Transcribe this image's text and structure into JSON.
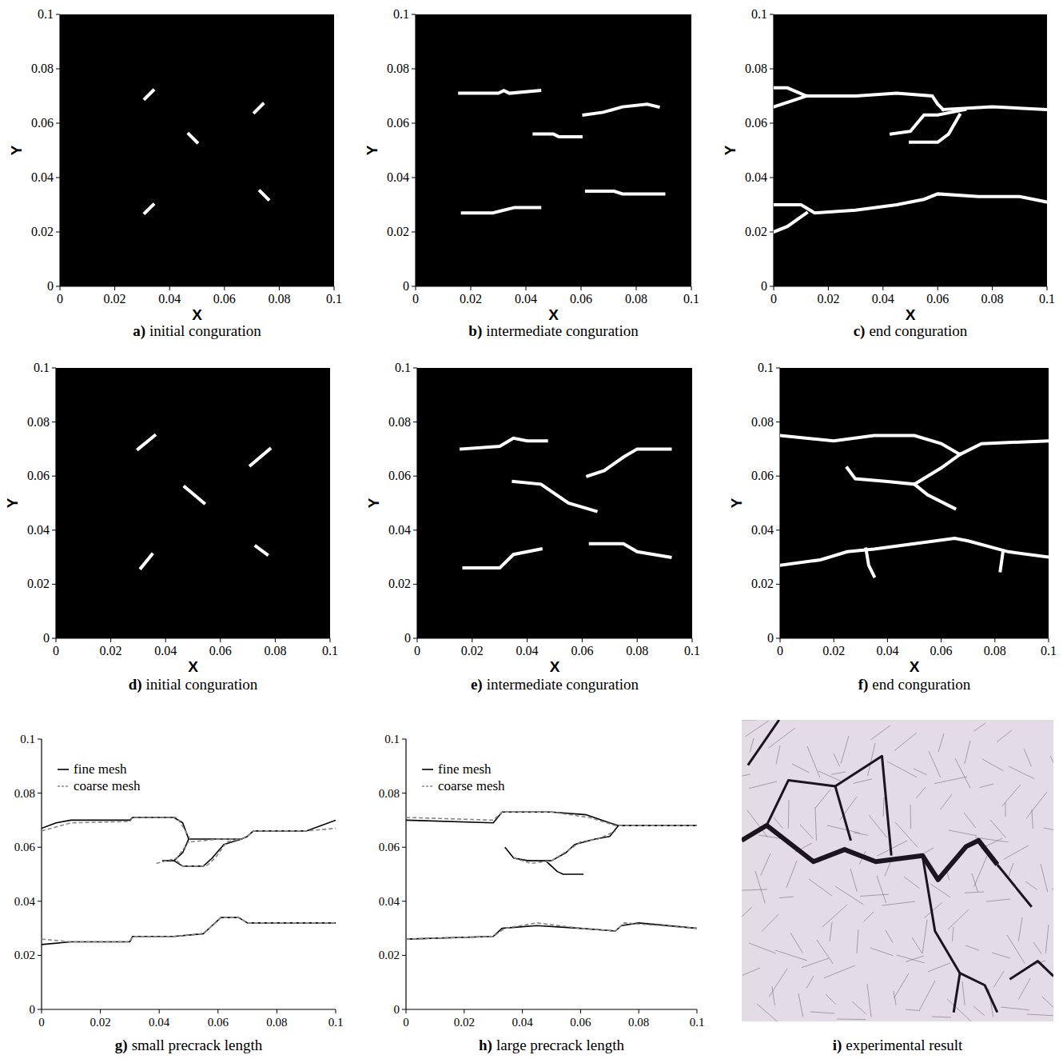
{
  "chart_data": [
    {
      "type": "crack_map",
      "panel_label": "a)",
      "title": "initial conguration",
      "x_label": "X",
      "y_label": "Y",
      "xlim": [
        0,
        0.1
      ],
      "ylim": [
        0,
        0.1
      ],
      "xticks": [
        0,
        0.02,
        0.04,
        0.06,
        0.08,
        0.1
      ],
      "yticks": [
        0,
        0.02,
        0.04,
        0.06,
        0.08,
        0.1
      ],
      "series": [
        {
          "color": "#ffffff",
          "x": [
            0.031,
            0.034,
            null,
            0.071,
            0.074,
            null,
            0.047,
            0.05,
            null,
            0.031,
            0.034,
            null,
            0.073,
            0.076
          ],
          "values": [
            0.069,
            0.072,
            null,
            0.064,
            0.067,
            null,
            0.056,
            0.053,
            null,
            0.027,
            0.03,
            null,
            0.035,
            0.032
          ]
        }
      ]
    },
    {
      "type": "crack_map",
      "panel_label": "b)",
      "title": "intermediate conguration",
      "x_label": "X",
      "y_label": "Y",
      "xlim": [
        0,
        0.1
      ],
      "ylim": [
        0,
        0.1
      ],
      "xticks": [
        0,
        0.02,
        0.04,
        0.06,
        0.08,
        0.1
      ],
      "yticks": [
        0,
        0.02,
        0.04,
        0.06,
        0.08,
        0.1
      ],
      "series": [
        {
          "color": "#ffffff",
          "x": [
            0.016,
            0.03,
            0.032,
            0.034,
            0.045,
            null,
            0.061,
            0.068,
            0.075,
            0.084,
            0.088,
            null,
            0.043,
            0.05,
            0.052,
            0.06,
            null,
            0.017,
            0.028,
            0.032,
            0.036,
            0.045,
            null,
            0.062,
            0.072,
            0.075,
            0.082,
            0.09
          ],
          "values": [
            0.071,
            0.071,
            0.072,
            0.071,
            0.072,
            null,
            0.063,
            0.064,
            0.066,
            0.067,
            0.066,
            null,
            0.056,
            0.056,
            0.055,
            0.055,
            null,
            0.027,
            0.027,
            0.028,
            0.029,
            0.029,
            null,
            0.035,
            0.035,
            0.034,
            0.034,
            0.034
          ]
        }
      ]
    },
    {
      "type": "crack_map",
      "panel_label": "c)",
      "title": "end conguration",
      "x_label": "X",
      "y_label": "Y",
      "xlim": [
        0,
        0.1
      ],
      "ylim": [
        0,
        0.1
      ],
      "xticks": [
        0,
        0.02,
        0.04,
        0.06,
        0.08,
        0.1
      ],
      "yticks": [
        0,
        0.02,
        0.04,
        0.06,
        0.08,
        0.1
      ],
      "series": [
        {
          "color": "#ffffff",
          "x": [
            0,
            0.005,
            0.012,
            0.03,
            0.045,
            0.058,
            0.06,
            0.062,
            null,
            0,
            0.006,
            0.012,
            null,
            0.062,
            0.08,
            0.1,
            null,
            0.043,
            0.05,
            0.055,
            0.06,
            0.065,
            0.07,
            null,
            0.05,
            0.06,
            0.064,
            0.068,
            null,
            0,
            0.01,
            0.015,
            0.03,
            0.045,
            0.055,
            0.06,
            0.075,
            0.09,
            0.1,
            null,
            0,
            0.005,
            0.012
          ],
          "values": [
            0.073,
            0.073,
            0.07,
            0.07,
            0.071,
            0.07,
            0.067,
            0.065,
            null,
            0.066,
            0.068,
            0.07,
            null,
            0.065,
            0.066,
            0.065,
            null,
            0.056,
            0.057,
            0.063,
            0.063,
            0.064,
            0.065,
            null,
            0.053,
            0.053,
            0.056,
            0.063,
            null,
            0.03,
            0.03,
            0.027,
            0.028,
            0.03,
            0.032,
            0.034,
            0.033,
            0.033,
            0.031,
            null,
            0.02,
            0.022,
            0.027
          ]
        }
      ]
    },
    {
      "type": "crack_map",
      "panel_label": "d)",
      "title": "initial conguration",
      "x_label": "X",
      "y_label": "Y",
      "xlim": [
        0,
        0.1
      ],
      "ylim": [
        0,
        0.1
      ],
      "xticks": [
        0,
        0.02,
        0.04,
        0.06,
        0.08,
        0.1
      ],
      "yticks": [
        0,
        0.02,
        0.04,
        0.06,
        0.08,
        0.1
      ],
      "series": [
        {
          "color": "#ffffff",
          "x": [
            0.03,
            0.036,
            null,
            0.071,
            0.078,
            null,
            0.047,
            0.054,
            null,
            0.031,
            0.035,
            null,
            0.073,
            0.077
          ],
          "values": [
            0.07,
            0.075,
            null,
            0.064,
            0.07,
            null,
            0.056,
            0.05,
            null,
            0.026,
            0.031,
            null,
            0.034,
            0.031
          ]
        }
      ]
    },
    {
      "type": "crack_map",
      "panel_label": "e)",
      "title": "intermediate conguration",
      "x_label": "X",
      "y_label": "Y",
      "xlim": [
        0,
        0.1
      ],
      "ylim": [
        0,
        0.1
      ],
      "xticks": [
        0,
        0.02,
        0.04,
        0.06,
        0.08,
        0.1
      ],
      "yticks": [
        0,
        0.02,
        0.04,
        0.06,
        0.08,
        0.1
      ],
      "series": [
        {
          "color": "#ffffff",
          "x": [
            0.016,
            0.03,
            0.035,
            0.04,
            0.047,
            null,
            0.062,
            0.068,
            0.075,
            0.08,
            0.092,
            null,
            0.035,
            0.045,
            0.055,
            0.065,
            null,
            0.017,
            0.03,
            0.035,
            0.045,
            null,
            0.063,
            0.075,
            0.08,
            0.092
          ],
          "values": [
            0.07,
            0.071,
            0.074,
            0.073,
            0.073,
            null,
            0.06,
            0.062,
            0.067,
            0.07,
            0.07,
            null,
            0.058,
            0.057,
            0.05,
            0.047,
            null,
            0.026,
            0.026,
            0.031,
            0.033,
            null,
            0.035,
            0.035,
            0.032,
            0.03
          ]
        }
      ]
    },
    {
      "type": "crack_map",
      "panel_label": "f)",
      "title": "end conguration",
      "x_label": "X",
      "y_label": "Y",
      "xlim": [
        0,
        0.1
      ],
      "ylim": [
        0,
        0.1
      ],
      "xticks": [
        0,
        0.02,
        0.04,
        0.06,
        0.08,
        0.1
      ],
      "yticks": [
        0,
        0.02,
        0.04,
        0.06,
        0.08,
        0.1
      ],
      "series": [
        {
          "color": "#ffffff",
          "x": [
            0,
            0.02,
            0.035,
            0.05,
            0.06,
            0.067,
            0.075,
            0.1,
            null,
            0.025,
            0.028,
            0.04,
            0.05,
            0.06,
            0.067,
            null,
            0.05,
            0.055,
            0.065,
            null,
            0,
            0.015,
            0.025,
            0.035,
            0.05,
            0.065,
            0.07,
            0.085,
            0.1,
            null,
            0.032,
            0.033,
            0.035,
            null,
            0.083,
            0.082
          ],
          "values": [
            0.075,
            0.073,
            0.075,
            0.075,
            0.072,
            0.068,
            0.072,
            0.073,
            null,
            0.063,
            0.059,
            0.058,
            0.057,
            0.063,
            0.068,
            null,
            0.057,
            0.053,
            0.048,
            null,
            0.027,
            0.029,
            0.032,
            0.033,
            0.035,
            0.037,
            0.036,
            0.032,
            0.03,
            null,
            0.033,
            0.027,
            0.023,
            null,
            0.032,
            0.025
          ]
        }
      ]
    },
    {
      "type": "line",
      "panel_label": "g)",
      "title": "small precrack length",
      "legend": "upper left",
      "xlim": [
        0,
        0.1
      ],
      "ylim": [
        0,
        0.1
      ],
      "xticks": [
        0,
        0.02,
        0.04,
        0.06,
        0.08,
        0.1
      ],
      "yticks": [
        0,
        0.02,
        0.04,
        0.06,
        0.08,
        0.1
      ],
      "series": [
        {
          "name": "fine mesh",
          "color": "#000000",
          "line_style": "solid",
          "x": [
            0,
            0.005,
            0.01,
            0.03,
            0.031,
            0.045,
            0.048,
            0.05,
            0.06,
            0.068,
            0.07,
            0.072,
            0.09,
            0.1,
            null,
            0.041,
            0.045,
            0.048,
            0.05,
            null,
            0.045,
            0.048,
            0.055,
            0.058,
            0.062,
            0.068,
            null,
            0,
            0.01,
            0.03,
            0.031,
            0.045,
            0.055,
            0.058,
            0.061,
            0.067,
            0.07,
            0.1
          ],
          "values": [
            0.067,
            0.069,
            0.07,
            0.07,
            0.071,
            0.071,
            0.069,
            0.063,
            0.063,
            0.063,
            0.064,
            0.066,
            0.066,
            0.07,
            null,
            0.055,
            0.055,
            0.058,
            0.063,
            null,
            0.055,
            0.053,
            0.053,
            0.056,
            0.061,
            0.063,
            null,
            0.024,
            0.025,
            0.025,
            0.027,
            0.027,
            0.028,
            0.031,
            0.034,
            0.034,
            0.032,
            0.032
          ]
        },
        {
          "name": "coarse mesh",
          "color": "#888888",
          "line_style": "dashed",
          "x": [
            0,
            0.01,
            0.03,
            0.031,
            0.046,
            0.049,
            0.051,
            0.06,
            0.068,
            0.07,
            0.072,
            0.09,
            0.1,
            null,
            0.039,
            0.046,
            0.05,
            null,
            0.046,
            0.048,
            0.056,
            0.059,
            0.063,
            0.068,
            null,
            0,
            0.01,
            0.03,
            0.031,
            0.045,
            0.055,
            0.058,
            0.061,
            0.067,
            0.07,
            0.1
          ],
          "values": [
            0.066,
            0.069,
            0.0695,
            0.071,
            0.071,
            0.066,
            0.062,
            0.063,
            0.063,
            0.064,
            0.066,
            0.066,
            0.067,
            null,
            0.054,
            0.056,
            0.062,
            null,
            0.055,
            0.053,
            0.053,
            0.056,
            0.062,
            0.063,
            null,
            0.026,
            0.025,
            0.025,
            0.027,
            0.027,
            0.028,
            0.031,
            0.034,
            0.034,
            0.032,
            0.032
          ]
        }
      ]
    },
    {
      "type": "line",
      "panel_label": "h)",
      "title": "large precrack length",
      "legend": "upper left",
      "xlim": [
        0,
        0.1
      ],
      "ylim": [
        0,
        0.1
      ],
      "xticks": [
        0,
        0.02,
        0.04,
        0.06,
        0.08,
        0.1
      ],
      "yticks": [
        0,
        0.02,
        0.04,
        0.06,
        0.08,
        0.1
      ],
      "series": [
        {
          "name": "fine mesh",
          "color": "#000000",
          "line_style": "solid",
          "x": [
            0,
            0.03,
            0.033,
            0.05,
            0.062,
            0.07,
            0.073,
            0.1,
            null,
            0.034,
            0.037,
            0.042,
            0.05,
            0.055,
            0.058,
            0.065,
            0.07,
            0.073,
            null,
            0.048,
            0.052,
            0.054,
            0.061,
            null,
            0,
            0.03,
            0.033,
            0.045,
            0.06,
            0.072,
            0.074,
            0.08,
            0.1
          ],
          "values": [
            0.07,
            0.069,
            0.073,
            0.073,
            0.072,
            0.069,
            0.068,
            0.068,
            null,
            0.06,
            0.056,
            0.055,
            0.055,
            0.058,
            0.061,
            0.063,
            0.064,
            0.068,
            null,
            0.055,
            0.051,
            0.05,
            0.05,
            null,
            0.026,
            0.027,
            0.03,
            0.031,
            0.03,
            0.029,
            0.031,
            0.032,
            0.03
          ]
        },
        {
          "name": "coarse mesh",
          "color": "#888888",
          "line_style": "dashed",
          "x": [
            0,
            0.03,
            0.033,
            0.05,
            0.063,
            0.072,
            0.1,
            null,
            0.037,
            0.043,
            0.05,
            0.056,
            0.06,
            0.066,
            0.072,
            null,
            0,
            0.03,
            0.034,
            0.045,
            0.06,
            0.072,
            0.075,
            0.1
          ],
          "values": [
            0.071,
            0.07,
            0.073,
            0.073,
            0.071,
            0.068,
            0.068,
            null,
            0.056,
            0.054,
            0.055,
            0.059,
            0.062,
            0.063,
            0.066,
            null,
            0.026,
            0.027,
            0.03,
            0.032,
            0.03,
            0.029,
            0.032,
            0.03
          ]
        }
      ]
    },
    {
      "type": "image",
      "panel_label": "i)",
      "title": "experimental result"
    }
  ]
}
